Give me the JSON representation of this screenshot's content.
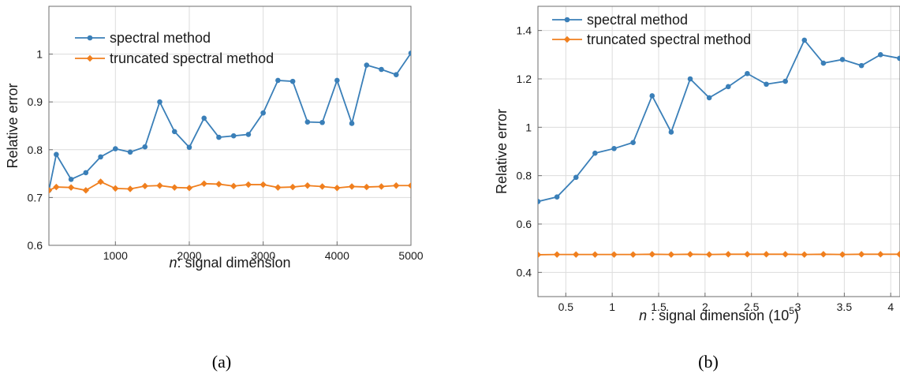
{
  "colors": {
    "spectral": "#3a7fb8",
    "truncated": "#f07f1e",
    "grid": "#dcdcdc",
    "axis": "#6e6e6e"
  },
  "chart_data": [
    {
      "type": "line",
      "caption": "(a)",
      "xlabel_italic": "n",
      "xlabel_rest": ": signal dimension",
      "xlabel_sup": "",
      "xlabel_tail": "",
      "ylabel": "Relative error",
      "xlim": [
        100,
        5000
      ],
      "ylim": [
        0.6,
        1.1
      ],
      "xticks": [
        1000,
        2000,
        3000,
        4000,
        5000
      ],
      "xtick_labels": [
        "1000",
        "2000",
        "3000",
        "4000",
        "5000"
      ],
      "yticks": [
        0.6,
        0.7,
        0.8,
        0.9,
        1.0
      ],
      "ytick_labels": [
        "0.6",
        "0.7",
        "0.8",
        "0.9",
        "1"
      ],
      "grid": true,
      "legend": [
        "spectral method",
        "truncated spectral method"
      ],
      "x": [
        100,
        200,
        400,
        600,
        800,
        1000,
        1200,
        1400,
        1600,
        1800,
        2000,
        2200,
        2400,
        2600,
        2800,
        3000,
        3200,
        3400,
        3600,
        3800,
        4000,
        4200,
        4400,
        4600,
        4800,
        5000
      ],
      "series": [
        {
          "name": "spectral method",
          "marker": "circle",
          "values": [
            0.715,
            0.79,
            0.738,
            0.752,
            0.785,
            0.802,
            0.795,
            0.806,
            0.9,
            0.838,
            0.805,
            0.866,
            0.826,
            0.829,
            0.832,
            0.877,
            0.945,
            0.943,
            0.858,
            0.857,
            0.945,
            0.855,
            0.977,
            0.968,
            0.957,
            1.002
          ]
        },
        {
          "name": "truncated spectral method",
          "marker": "diamond",
          "values": [
            0.715,
            0.722,
            0.721,
            0.715,
            0.733,
            0.719,
            0.718,
            0.724,
            0.725,
            0.721,
            0.72,
            0.729,
            0.728,
            0.724,
            0.727,
            0.727,
            0.721,
            0.722,
            0.725,
            0.723,
            0.72,
            0.723,
            0.722,
            0.723,
            0.725,
            0.725
          ]
        }
      ]
    },
    {
      "type": "line",
      "caption": "(b)",
      "xlabel_italic": "n",
      "xlabel_rest": " : signal dimension (10",
      "xlabel_sup": "5",
      "xlabel_tail": ")",
      "ylabel": "Relative error",
      "xlim": [
        0.2,
        4.1
      ],
      "ylim": [
        0.3,
        1.5
      ],
      "xticks": [
        0.5,
        1,
        1.5,
        2,
        2.5,
        3,
        3.5,
        4
      ],
      "xtick_labels": [
        "0.5",
        "1",
        "1.5",
        "2",
        "2.5",
        "3",
        "3.5",
        "4"
      ],
      "yticks": [
        0.4,
        0.6,
        0.8,
        1.0,
        1.2,
        1.4
      ],
      "ytick_labels": [
        "0.4",
        "0.6",
        "0.8",
        "1",
        "1.2",
        "1.4"
      ],
      "grid": true,
      "legend": [
        "spectral method",
        "truncated spectral method"
      ],
      "x": [
        0.2,
        0.405,
        0.61,
        0.815,
        1.02,
        1.225,
        1.43,
        1.635,
        1.84,
        2.045,
        2.25,
        2.455,
        2.66,
        2.865,
        3.07,
        3.275,
        3.48,
        3.685,
        3.89,
        4.095
      ],
      "series": [
        {
          "name": "spectral method",
          "marker": "circle",
          "values": [
            0.693,
            0.712,
            0.793,
            0.893,
            0.912,
            0.937,
            1.13,
            0.98,
            1.2,
            1.122,
            1.168,
            1.222,
            1.178,
            1.19,
            1.36,
            1.265,
            1.28,
            1.255,
            1.3,
            1.285
          ]
        },
        {
          "name": "truncated spectral method",
          "marker": "diamond",
          "values": [
            0.473,
            0.474,
            0.474,
            0.474,
            0.474,
            0.474,
            0.475,
            0.474,
            0.475,
            0.474,
            0.475,
            0.475,
            0.475,
            0.475,
            0.474,
            0.475,
            0.474,
            0.475,
            0.475,
            0.475
          ]
        }
      ]
    }
  ]
}
